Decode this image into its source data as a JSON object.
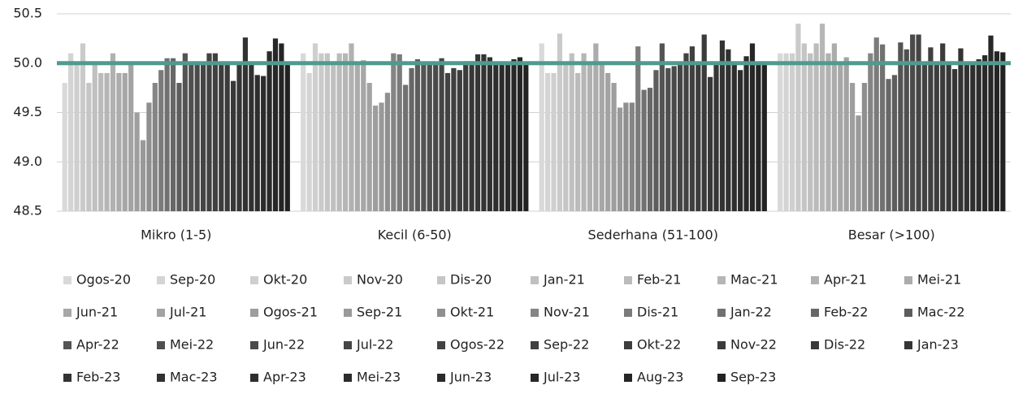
{
  "chart_data": {
    "type": "bar",
    "categories": [
      "Mikro (1-5)",
      "Kecil (6-50)",
      "Sederhana (51-100)",
      "Besar (>100)"
    ],
    "ylim": [
      48.5,
      50.5
    ],
    "yticks": [
      48.5,
      {
        "value": 49,
        "label": "49.0"
      },
      49.5,
      {
        "value": 50,
        "label": "50.0"
      },
      50.5
    ],
    "grid": true,
    "legend": "bottom",
    "reference_line": {
      "value": 50,
      "color": "#4f9a90"
    },
    "series": [
      {
        "name": "Ogos-20",
        "color": "#d9d9d9",
        "values": [
          49.8,
          50.1,
          50.2,
          50.1
        ]
      },
      {
        "name": "Sep-20",
        "color": "#d4d4d4",
        "values": [
          50.1,
          49.9,
          49.9,
          50.1
        ]
      },
      {
        "name": "Okt-20",
        "color": "#cfcfcf",
        "values": [
          50.0,
          50.2,
          49.9,
          50.1
        ]
      },
      {
        "name": "Nov-20",
        "color": "#cacaca",
        "values": [
          50.2,
          50.1,
          50.3,
          50.4
        ]
      },
      {
        "name": "Dis-20",
        "color": "#c5c5c5",
        "values": [
          49.8,
          50.1,
          50.0,
          50.2
        ]
      },
      {
        "name": "Jan-21",
        "color": "#c0c0c0",
        "values": [
          50.0,
          50.0,
          50.1,
          50.1
        ]
      },
      {
        "name": "Feb-21",
        "color": "#bbbbbb",
        "values": [
          49.9,
          50.1,
          49.9,
          50.2
        ]
      },
      {
        "name": "Mac-21",
        "color": "#b6b6b6",
        "values": [
          49.9,
          50.1,
          50.1,
          50.4
        ]
      },
      {
        "name": "Apr-21",
        "color": "#b1b1b1",
        "values": [
          50.1,
          50.2,
          50.0,
          50.1
        ]
      },
      {
        "name": "Mei-21",
        "color": "#acacac",
        "values": [
          49.9,
          50.0,
          50.2,
          50.2
        ]
      },
      {
        "name": "Jun-21",
        "color": "#a7a7a7",
        "values": [
          49.9,
          50.03,
          50.0,
          50.0
        ]
      },
      {
        "name": "Jul-21",
        "color": "#a3a3a3",
        "values": [
          50.0,
          49.8,
          49.9,
          50.06
        ]
      },
      {
        "name": "Ogos-21",
        "color": "#9e9e9e",
        "values": [
          49.5,
          49.57,
          49.8,
          49.8
        ]
      },
      {
        "name": "Sep-21",
        "color": "#999999",
        "values": [
          49.22,
          49.6,
          49.55,
          49.47
        ]
      },
      {
        "name": "Okt-21",
        "color": "#8f8f8f",
        "values": [
          49.6,
          49.7,
          49.6,
          49.8
        ]
      },
      {
        "name": "Nov-21",
        "color": "#858585",
        "values": [
          49.8,
          50.1,
          49.6,
          50.1
        ]
      },
      {
        "name": "Dis-21",
        "color": "#7b7b7b",
        "values": [
          49.93,
          50.09,
          50.17,
          50.26
        ]
      },
      {
        "name": "Jan-22",
        "color": "#717171",
        "values": [
          50.05,
          49.78,
          49.73,
          50.19
        ]
      },
      {
        "name": "Feb-22",
        "color": "#676767",
        "values": [
          50.05,
          49.95,
          49.75,
          49.84
        ]
      },
      {
        "name": "Mac-22",
        "color": "#5d5d5d",
        "values": [
          49.8,
          50.04,
          49.93,
          49.88
        ]
      },
      {
        "name": "Apr-22",
        "color": "#545454",
        "values": [
          50.1,
          50.0,
          50.2,
          50.21
        ]
      },
      {
        "name": "Mei-22",
        "color": "#4f4f4f",
        "values": [
          50.0,
          50.0,
          49.95,
          50.14
        ]
      },
      {
        "name": "Jun-22",
        "color": "#4a4a4a",
        "values": [
          50.0,
          50.0,
          49.97,
          50.29
        ]
      },
      {
        "name": "Jul-22",
        "color": "#454545",
        "values": [
          50.0,
          50.05,
          50.0,
          50.29
        ]
      },
      {
        "name": "Ogos-22",
        "color": "#424242",
        "values": [
          50.1,
          49.9,
          50.1,
          50.0
        ]
      },
      {
        "name": "Sep-22",
        "color": "#404040",
        "values": [
          50.1,
          49.95,
          50.17,
          50.16
        ]
      },
      {
        "name": "Okt-22",
        "color": "#3d3d3d",
        "values": [
          50.0,
          49.93,
          50.0,
          50.0
        ]
      },
      {
        "name": "Nov-22",
        "color": "#3b3b3b",
        "values": [
          50.0,
          50.02,
          50.29,
          50.2
        ]
      },
      {
        "name": "Dis-22",
        "color": "#383838",
        "values": [
          49.82,
          50.02,
          49.86,
          50.0
        ]
      },
      {
        "name": "Jan-23",
        "color": "#363636",
        "values": [
          50.0,
          50.09,
          50.0,
          49.94
        ]
      },
      {
        "name": "Feb-23",
        "color": "#333333",
        "values": [
          50.26,
          50.09,
          50.23,
          50.15
        ]
      },
      {
        "name": "Mac-23",
        "color": "#313131",
        "values": [
          50.0,
          50.06,
          50.14,
          50.0
        ]
      },
      {
        "name": "Apr-23",
        "color": "#2e2e2e",
        "values": [
          49.88,
          50.0,
          50.0,
          50.0
        ]
      },
      {
        "name": "Mei-23",
        "color": "#2c2c2c",
        "values": [
          49.87,
          50.0,
          49.93,
          50.04
        ]
      },
      {
        "name": "Jun-23",
        "color": "#2a2a2a",
        "values": [
          50.12,
          50.0,
          50.07,
          50.08
        ]
      },
      {
        "name": "Jul-23",
        "color": "#272727",
        "values": [
          50.25,
          50.04,
          50.2,
          50.28
        ]
      },
      {
        "name": "Aug-23",
        "color": "#252525",
        "values": [
          50.2,
          50.06,
          50.0,
          50.12
        ]
      },
      {
        "name": "Sep-23",
        "color": "#222222",
        "values": [
          50.0,
          50.0,
          50.0,
          50.11
        ]
      }
    ]
  }
}
